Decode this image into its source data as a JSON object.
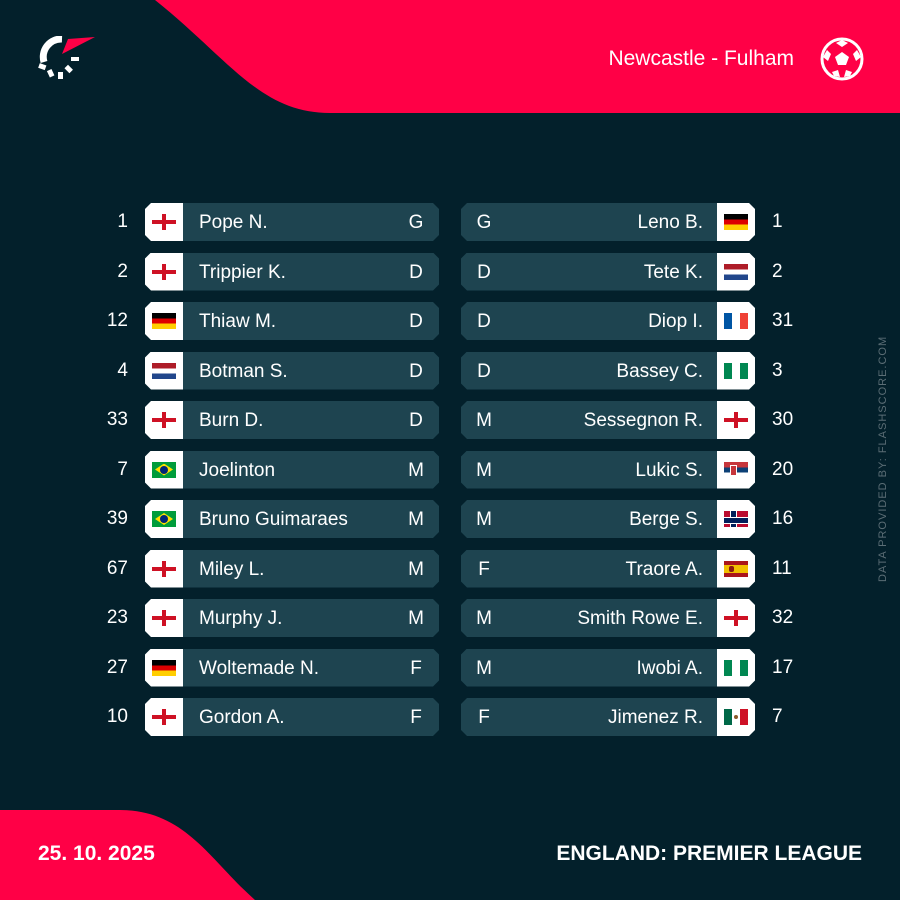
{
  "header": {
    "match": "Newcastle - Fulham",
    "logo": "flashscore-logo",
    "sport_icon": "football-icon"
  },
  "footer": {
    "date": "25. 10. 2025",
    "league": "ENGLAND: PREMIER LEAGUE",
    "credit": "DATA PROVIDED BY: FLASHSCORE.COM"
  },
  "colors": {
    "accent": "#ff0046",
    "background": "#03202b",
    "row": "#1e4450"
  },
  "home": [
    {
      "number": "1",
      "name": "Pope N.",
      "pos": "G",
      "flag": "eng"
    },
    {
      "number": "2",
      "name": "Trippier K.",
      "pos": "D",
      "flag": "eng"
    },
    {
      "number": "12",
      "name": "Thiaw M.",
      "pos": "D",
      "flag": "ger"
    },
    {
      "number": "4",
      "name": "Botman S.",
      "pos": "D",
      "flag": "ned"
    },
    {
      "number": "33",
      "name": "Burn D.",
      "pos": "D",
      "flag": "eng"
    },
    {
      "number": "7",
      "name": "Joelinton",
      "pos": "M",
      "flag": "bra"
    },
    {
      "number": "39",
      "name": "Bruno Guimaraes",
      "pos": "M",
      "flag": "bra"
    },
    {
      "number": "67",
      "name": "Miley L.",
      "pos": "M",
      "flag": "eng"
    },
    {
      "number": "23",
      "name": "Murphy J.",
      "pos": "M",
      "flag": "eng"
    },
    {
      "number": "27",
      "name": "Woltemade N.",
      "pos": "F",
      "flag": "ger"
    },
    {
      "number": "10",
      "name": "Gordon A.",
      "pos": "F",
      "flag": "eng"
    }
  ],
  "away": [
    {
      "number": "1",
      "name": "Leno B.",
      "pos": "G",
      "flag": "ger"
    },
    {
      "number": "2",
      "name": "Tete K.",
      "pos": "D",
      "flag": "ned"
    },
    {
      "number": "31",
      "name": "Diop I.",
      "pos": "D",
      "flag": "fra"
    },
    {
      "number": "3",
      "name": "Bassey C.",
      "pos": "D",
      "flag": "nga"
    },
    {
      "number": "30",
      "name": "Sessegnon R.",
      "pos": "M",
      "flag": "eng"
    },
    {
      "number": "20",
      "name": "Lukic S.",
      "pos": "M",
      "flag": "srb"
    },
    {
      "number": "16",
      "name": "Berge S.",
      "pos": "M",
      "flag": "nor"
    },
    {
      "number": "11",
      "name": "Traore A.",
      "pos": "F",
      "flag": "esp"
    },
    {
      "number": "32",
      "name": "Smith Rowe E.",
      "pos": "M",
      "flag": "eng"
    },
    {
      "number": "17",
      "name": "Iwobi A.",
      "pos": "M",
      "flag": "nga"
    },
    {
      "number": "7",
      "name": "Jimenez R.",
      "pos": "F",
      "flag": "mex"
    }
  ]
}
